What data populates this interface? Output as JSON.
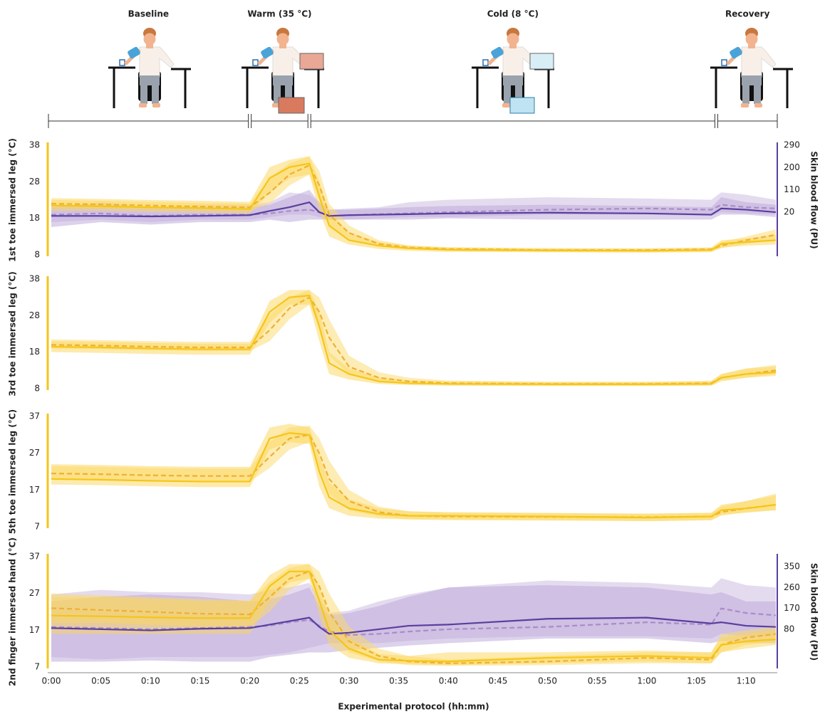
{
  "protocol": {
    "phases": [
      {
        "label": "Baseline",
        "start": 0,
        "end": 20
      },
      {
        "label": "Warm (35 °C)",
        "start": 20,
        "end": 26
      },
      {
        "label": "Cold (8 °C)",
        "start": 26,
        "end": 67
      },
      {
        "label": "Recovery",
        "start": 67,
        "end": 73
      }
    ]
  },
  "chart_data": [
    {
      "type": "line",
      "ylabel": "1st toe immersed leg (°C)",
      "y2label": "Skin blood flow (PU)",
      "ycolor": "#f5c518",
      "y2color": "#5b3fa0",
      "x": [
        0,
        5,
        10,
        15,
        20,
        22,
        24,
        26,
        27,
        28,
        30,
        33,
        36,
        40,
        50,
        60,
        66.5,
        67.5,
        70,
        73
      ],
      "xlim": [
        0,
        73
      ],
      "ylim": [
        8,
        38
      ],
      "yticks": [
        8,
        18,
        28,
        38
      ],
      "y2lim": [
        -152,
        290
      ],
      "y2ticks": [
        20,
        110,
        200,
        290
      ],
      "series": [
        {
          "axis": "y2",
          "color": "#a98cc7",
          "style": "dashed",
          "band_color": "#c9b8e0",
          "values": [
            10,
            15,
            5,
            10,
            10,
            15,
            25,
            30,
            20,
            5,
            8,
            12,
            15,
            20,
            30,
            35,
            30,
            50,
            40,
            35
          ],
          "lower": [
            -20,
            -10,
            -20,
            -10,
            -10,
            0,
            10,
            10,
            0,
            -10,
            -10,
            -5,
            0,
            0,
            10,
            10,
            5,
            20,
            15,
            10
          ],
          "upper": [
            50,
            50,
            40,
            50,
            50,
            60,
            100,
            90,
            60,
            30,
            35,
            40,
            60,
            70,
            80,
            75,
            70,
            100,
            90,
            70
          ]
        },
        {
          "axis": "y2",
          "color": "#5a3e9e",
          "style": "solid",
          "band_color": "#b9a5d9",
          "values": [
            5,
            5,
            3,
            5,
            8,
            25,
            40,
            60,
            20,
            5,
            8,
            10,
            12,
            15,
            18,
            15,
            10,
            35,
            30,
            20
          ],
          "lower": [
            -40,
            -20,
            -30,
            -20,
            -20,
            -10,
            -20,
            -10,
            -10,
            -10,
            -10,
            -10,
            -10,
            -5,
            -10,
            -10,
            -10,
            10,
            10,
            0
          ],
          "upper": [
            40,
            60,
            40,
            40,
            40,
            50,
            80,
            110,
            60,
            30,
            30,
            35,
            40,
            45,
            50,
            45,
            40,
            80,
            60,
            50
          ]
        },
        {
          "color": "#f0b030",
          "style": "dashed",
          "band_color": "#fbd96a",
          "values": [
            22,
            21.8,
            21.5,
            21.2,
            21,
            25,
            30,
            32.5,
            27,
            19,
            14,
            11,
            10,
            9.6,
            9.3,
            9.3,
            9.5,
            10.5,
            12,
            13.5
          ],
          "lower": [
            21,
            20.8,
            20.5,
            20.3,
            20,
            22,
            27,
            30,
            23,
            16,
            12,
            10.3,
            9.5,
            9.1,
            8.9,
            8.9,
            9,
            9.8,
            11,
            12
          ],
          "upper": [
            23,
            22.8,
            22.5,
            22.2,
            22,
            29,
            33,
            35,
            31,
            22,
            16,
            12,
            10.6,
            10.1,
            9.8,
            9.8,
            10,
            11.5,
            13,
            15
          ]
        },
        {
          "color": "#f5c518",
          "style": "solid",
          "band_color": "#fcd55a",
          "values": [
            21.5,
            21.3,
            21,
            20.8,
            20.5,
            29,
            32,
            33,
            24,
            16,
            12,
            10.5,
            9.8,
            9.4,
            9.2,
            9.1,
            9.3,
            11,
            11.5,
            12
          ],
          "lower": [
            20,
            20,
            19.7,
            19.5,
            19.3,
            25,
            29,
            30,
            20,
            13,
            10.8,
            9.6,
            9.1,
            8.8,
            8.7,
            8.6,
            8.7,
            10,
            10.5,
            10.8
          ],
          "upper": [
            23.5,
            23.3,
            23,
            22.8,
            22.5,
            32,
            34,
            35,
            28,
            20,
            14,
            11.5,
            10.5,
            10,
            9.8,
            9.7,
            10,
            12,
            12.5,
            13.5
          ]
        }
      ]
    },
    {
      "type": "line",
      "ylabel": "3rd toe immersed leg (°C)",
      "ycolor": "#f5c518",
      "x": [
        0,
        5,
        10,
        15,
        20,
        22,
        24,
        26,
        27,
        28,
        30,
        33,
        36,
        40,
        50,
        60,
        66.5,
        67.5,
        70,
        73
      ],
      "xlim": [
        0,
        73
      ],
      "ylim": [
        8,
        38
      ],
      "yticks": [
        8,
        18,
        28,
        38
      ],
      "series": [
        {
          "color": "#f0b030",
          "style": "dashed",
          "band_color": "#fbd96a",
          "values": [
            20,
            19.8,
            19.5,
            19.3,
            19.3,
            24,
            30,
            33,
            29,
            22,
            14,
            11,
            10,
            9.5,
            9.3,
            9.3,
            9.5,
            11,
            12,
            13
          ],
          "lower": [
            19,
            18.8,
            18.5,
            18.3,
            18.3,
            21,
            27,
            31,
            25,
            17,
            12,
            10.3,
            9.5,
            9.1,
            8.9,
            8.9,
            9,
            10.3,
            11,
            12
          ],
          "upper": [
            21.5,
            21.3,
            21,
            20.8,
            20.8,
            28,
            33,
            35,
            33,
            27,
            17,
            12.5,
            11,
            10.2,
            9.9,
            9.9,
            10.2,
            12,
            13.5,
            14
          ]
        },
        {
          "color": "#f5c518",
          "style": "solid",
          "band_color": "#fcd55a",
          "values": [
            19.5,
            19.3,
            19,
            18.8,
            18.8,
            29,
            33,
            33.5,
            25,
            15,
            12,
            10,
            9.5,
            9.3,
            9.2,
            9.2,
            9.3,
            11,
            12,
            12.5
          ],
          "lower": [
            18,
            17.8,
            17.5,
            17.3,
            17.3,
            26,
            31,
            31,
            21,
            12,
            10.5,
            9.3,
            9,
            8.8,
            8.7,
            8.7,
            8.8,
            10,
            11,
            11.5
          ],
          "upper": [
            21,
            20.8,
            20.5,
            20.3,
            20.3,
            32,
            35,
            35,
            29,
            18,
            13.5,
            11,
            10.3,
            10,
            9.8,
            9.8,
            10,
            12,
            13.5,
            14.5
          ]
        }
      ]
    },
    {
      "type": "line",
      "ylabel": "5th toe immersed leg (°C)",
      "ycolor": "#f5c518",
      "x": [
        0,
        5,
        10,
        15,
        20,
        22,
        24,
        26,
        27,
        28,
        30,
        33,
        36,
        40,
        50,
        60,
        66.5,
        67.5,
        70,
        73
      ],
      "xlim": [
        0,
        73
      ],
      "ylim": [
        7,
        37
      ],
      "yticks": [
        7,
        17,
        27,
        37
      ],
      "series": [
        {
          "color": "#f0b030",
          "style": "dashed",
          "band_color": "#fbd96a",
          "values": [
            21.5,
            21.3,
            21,
            20.8,
            20.8,
            26,
            31,
            32,
            27,
            20,
            14,
            11,
            10,
            9.8,
            9.7,
            9.6,
            9.8,
            11,
            12,
            13
          ],
          "lower": [
            20,
            19.8,
            19.5,
            19.3,
            19.3,
            23,
            28,
            30,
            23,
            16,
            11.5,
            9.8,
            9,
            8.8,
            8.7,
            8.6,
            8.8,
            10,
            11,
            11.5
          ],
          "upper": [
            23.5,
            23.3,
            23,
            22.8,
            22.8,
            30,
            34,
            34.5,
            31,
            25,
            17,
            12.5,
            11.2,
            10.8,
            10.7,
            10.6,
            10.8,
            12.5,
            14,
            15.5
          ]
        },
        {
          "color": "#f5c518",
          "style": "solid",
          "band_color": "#fcd55a",
          "values": [
            20,
            19.8,
            19.5,
            19.3,
            19.3,
            31,
            32.5,
            32,
            22,
            15,
            12,
            10.5,
            10,
            10,
            9.8,
            9.5,
            9.8,
            11.5,
            12,
            13
          ],
          "lower": [
            18.5,
            18.3,
            18,
            17.8,
            17.8,
            28,
            30,
            29.5,
            18,
            12,
            10,
            9.2,
            9,
            9,
            8.8,
            8.5,
            8.8,
            10.3,
            10.8,
            11.5
          ],
          "upper": [
            24,
            23.8,
            23.5,
            23.3,
            23.3,
            34,
            35,
            34,
            26,
            19,
            14.5,
            12,
            11.2,
            11,
            10.8,
            10.5,
            10.8,
            13,
            14,
            16
          ]
        }
      ]
    },
    {
      "type": "line",
      "ylabel": "2nd finger immersed hand (°C)",
      "y2label": "Skin blood flow (PU)",
      "xlabel": "Experimental protocol (hh:mm)",
      "ycolor": "#f5c518",
      "y2color": "#5b3fa0",
      "x": [
        0,
        5,
        10,
        15,
        20,
        22,
        24,
        26,
        27,
        28,
        30,
        33,
        36,
        40,
        50,
        60,
        66.5,
        67.5,
        70,
        73
      ],
      "xlim": [
        0,
        73
      ],
      "ylim": [
        7,
        37
      ],
      "yticks": [
        7,
        17,
        27,
        37
      ],
      "y2lim": [
        -83,
        393
      ],
      "y2ticks": [
        80,
        170,
        260,
        350
      ],
      "xticks": [
        {
          "value": 0,
          "label": "0:00"
        },
        {
          "value": 5,
          "label": "0:05"
        },
        {
          "value": 10,
          "label": "0:10"
        },
        {
          "value": 15,
          "label": "0:15"
        },
        {
          "value": 20,
          "label": "0:20"
        },
        {
          "value": 25,
          "label": "0:25"
        },
        {
          "value": 30,
          "label": "0:30"
        },
        {
          "value": 35,
          "label": "0:35"
        },
        {
          "value": 40,
          "label": "0:40"
        },
        {
          "value": 45,
          "label": "0:45"
        },
        {
          "value": 50,
          "label": "0:50"
        },
        {
          "value": 55,
          "label": "0:55"
        },
        {
          "value": 60,
          "label": "1:00"
        },
        {
          "value": 65,
          "label": "1:05"
        },
        {
          "value": 70,
          "label": "1:10"
        }
      ],
      "series": [
        {
          "axis": "y2",
          "color": "#a98cc7",
          "style": "dashed",
          "band_color": "#c9b8e0",
          "values": [
            90,
            85,
            80,
            85,
            90,
            95,
            110,
            120,
            95,
            70,
            55,
            60,
            70,
            80,
            90,
            110,
            100,
            170,
            150,
            140
          ],
          "lower": [
            -40,
            -50,
            -40,
            -40,
            -40,
            -30,
            -20,
            0,
            10,
            20,
            20,
            20,
            30,
            40,
            50,
            50,
            40,
            60,
            50,
            50
          ],
          "upper": [
            230,
            250,
            240,
            240,
            230,
            250,
            260,
            280,
            220,
            150,
            160,
            200,
            230,
            260,
            290,
            280,
            260,
            300,
            270,
            260
          ]
        },
        {
          "axis": "y2",
          "color": "#5a3e9e",
          "style": "solid",
          "band_color": "#b9a5d9",
          "values": [
            85,
            80,
            75,
            82,
            85,
            100,
            115,
            130,
            90,
            60,
            65,
            80,
            95,
            100,
            125,
            130,
            105,
            110,
            95,
            90
          ],
          "lower": [
            -60,
            -60,
            -55,
            -60,
            -60,
            -40,
            -30,
            -20,
            -20,
            -20,
            -10,
            0,
            10,
            20,
            40,
            40,
            20,
            30,
            20,
            20
          ],
          "upper": [
            200,
            220,
            230,
            220,
            200,
            210,
            230,
            260,
            180,
            140,
            150,
            180,
            220,
            260,
            270,
            260,
            230,
            240,
            200,
            200
          ]
        },
        {
          "color": "#f0b030",
          "style": "dashed",
          "band_color": "#fbd96a",
          "values": [
            23,
            22.5,
            22,
            21.5,
            21.3,
            26,
            31,
            33,
            29,
            22,
            14,
            10,
            8.5,
            8,
            8.5,
            9.5,
            9,
            13,
            15,
            16
          ],
          "lower": [
            19,
            19,
            18.5,
            18,
            18,
            22,
            28,
            31,
            25,
            18,
            11,
            8.5,
            7.5,
            7.3,
            7.5,
            8,
            8,
            11,
            13,
            14
          ],
          "upper": [
            27,
            26.5,
            26,
            25.5,
            25,
            30,
            34,
            35,
            33,
            27,
            18,
            12,
            10,
            9,
            10,
            11,
            11,
            16,
            17,
            18
          ]
        },
        {
          "color": "#f5c518",
          "style": "solid",
          "band_color": "#fcd55a",
          "values": [
            21,
            20.8,
            20.5,
            20.3,
            20.3,
            29,
            33,
            33,
            25,
            17,
            12,
            9,
            8.7,
            8.5,
            9.5,
            10,
            9.5,
            13,
            14,
            14.5
          ],
          "lower": [
            16,
            16,
            16,
            16,
            16,
            25,
            30,
            31,
            21,
            13,
            9.5,
            8,
            7.8,
            7.5,
            8,
            8.5,
            8,
            11,
            12,
            13
          ],
          "upper": [
            26,
            26,
            25.5,
            25,
            25,
            32,
            35,
            35,
            29,
            21,
            15,
            10.5,
            10,
            11,
            11,
            11.5,
            11,
            15,
            16,
            17
          ]
        }
      ]
    }
  ]
}
